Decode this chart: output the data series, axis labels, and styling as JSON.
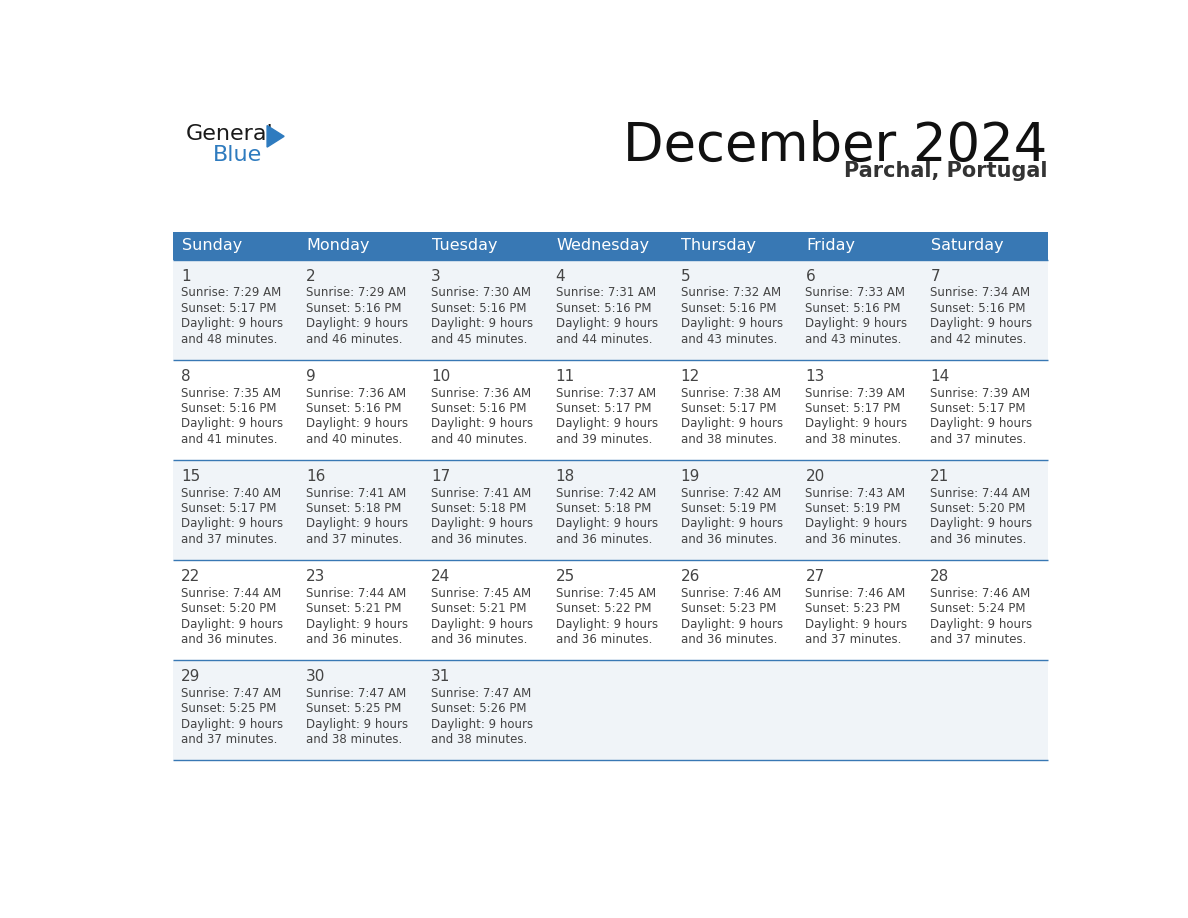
{
  "title": "December 2024",
  "subtitle": "Parchal, Portugal",
  "header_bg_color": "#3878b4",
  "header_text_color": "#ffffff",
  "cell_bg_row0": "#f0f4f8",
  "cell_bg_row1": "#ffffff",
  "cell_bg_row2": "#f0f4f8",
  "cell_bg_row3": "#ffffff",
  "cell_bg_row4": "#f0f4f8",
  "row_line_color": "#3878b4",
  "text_color": "#444444",
  "days_of_week": [
    "Sunday",
    "Monday",
    "Tuesday",
    "Wednesday",
    "Thursday",
    "Friday",
    "Saturday"
  ],
  "calendar_data": [
    [
      {
        "day": 1,
        "sunrise": "7:29 AM",
        "sunset": "5:17 PM",
        "daylight": "9 hours and 48 minutes."
      },
      {
        "day": 2,
        "sunrise": "7:29 AM",
        "sunset": "5:16 PM",
        "daylight": "9 hours and 46 minutes."
      },
      {
        "day": 3,
        "sunrise": "7:30 AM",
        "sunset": "5:16 PM",
        "daylight": "9 hours and 45 minutes."
      },
      {
        "day": 4,
        "sunrise": "7:31 AM",
        "sunset": "5:16 PM",
        "daylight": "9 hours and 44 minutes."
      },
      {
        "day": 5,
        "sunrise": "7:32 AM",
        "sunset": "5:16 PM",
        "daylight": "9 hours and 43 minutes."
      },
      {
        "day": 6,
        "sunrise": "7:33 AM",
        "sunset": "5:16 PM",
        "daylight": "9 hours and 43 minutes."
      },
      {
        "day": 7,
        "sunrise": "7:34 AM",
        "sunset": "5:16 PM",
        "daylight": "9 hours and 42 minutes."
      }
    ],
    [
      {
        "day": 8,
        "sunrise": "7:35 AM",
        "sunset": "5:16 PM",
        "daylight": "9 hours and 41 minutes."
      },
      {
        "day": 9,
        "sunrise": "7:36 AM",
        "sunset": "5:16 PM",
        "daylight": "9 hours and 40 minutes."
      },
      {
        "day": 10,
        "sunrise": "7:36 AM",
        "sunset": "5:16 PM",
        "daylight": "9 hours and 40 minutes."
      },
      {
        "day": 11,
        "sunrise": "7:37 AM",
        "sunset": "5:17 PM",
        "daylight": "9 hours and 39 minutes."
      },
      {
        "day": 12,
        "sunrise": "7:38 AM",
        "sunset": "5:17 PM",
        "daylight": "9 hours and 38 minutes."
      },
      {
        "day": 13,
        "sunrise": "7:39 AM",
        "sunset": "5:17 PM",
        "daylight": "9 hours and 38 minutes."
      },
      {
        "day": 14,
        "sunrise": "7:39 AM",
        "sunset": "5:17 PM",
        "daylight": "9 hours and 37 minutes."
      }
    ],
    [
      {
        "day": 15,
        "sunrise": "7:40 AM",
        "sunset": "5:17 PM",
        "daylight": "9 hours and 37 minutes."
      },
      {
        "day": 16,
        "sunrise": "7:41 AM",
        "sunset": "5:18 PM",
        "daylight": "9 hours and 37 minutes."
      },
      {
        "day": 17,
        "sunrise": "7:41 AM",
        "sunset": "5:18 PM",
        "daylight": "9 hours and 36 minutes."
      },
      {
        "day": 18,
        "sunrise": "7:42 AM",
        "sunset": "5:18 PM",
        "daylight": "9 hours and 36 minutes."
      },
      {
        "day": 19,
        "sunrise": "7:42 AM",
        "sunset": "5:19 PM",
        "daylight": "9 hours and 36 minutes."
      },
      {
        "day": 20,
        "sunrise": "7:43 AM",
        "sunset": "5:19 PM",
        "daylight": "9 hours and 36 minutes."
      },
      {
        "day": 21,
        "sunrise": "7:44 AM",
        "sunset": "5:20 PM",
        "daylight": "9 hours and 36 minutes."
      }
    ],
    [
      {
        "day": 22,
        "sunrise": "7:44 AM",
        "sunset": "5:20 PM",
        "daylight": "9 hours and 36 minutes."
      },
      {
        "day": 23,
        "sunrise": "7:44 AM",
        "sunset": "5:21 PM",
        "daylight": "9 hours and 36 minutes."
      },
      {
        "day": 24,
        "sunrise": "7:45 AM",
        "sunset": "5:21 PM",
        "daylight": "9 hours and 36 minutes."
      },
      {
        "day": 25,
        "sunrise": "7:45 AM",
        "sunset": "5:22 PM",
        "daylight": "9 hours and 36 minutes."
      },
      {
        "day": 26,
        "sunrise": "7:46 AM",
        "sunset": "5:23 PM",
        "daylight": "9 hours and 36 minutes."
      },
      {
        "day": 27,
        "sunrise": "7:46 AM",
        "sunset": "5:23 PM",
        "daylight": "9 hours and 37 minutes."
      },
      {
        "day": 28,
        "sunrise": "7:46 AM",
        "sunset": "5:24 PM",
        "daylight": "9 hours and 37 minutes."
      }
    ],
    [
      {
        "day": 29,
        "sunrise": "7:47 AM",
        "sunset": "5:25 PM",
        "daylight": "9 hours and 37 minutes."
      },
      {
        "day": 30,
        "sunrise": "7:47 AM",
        "sunset": "5:25 PM",
        "daylight": "9 hours and 38 minutes."
      },
      {
        "day": 31,
        "sunrise": "7:47 AM",
        "sunset": "5:26 PM",
        "daylight": "9 hours and 38 minutes."
      },
      null,
      null,
      null,
      null
    ]
  ],
  "logo_text1": "General",
  "logo_text2": "Blue",
  "logo_color1": "#1a1a1a",
  "logo_color2": "#2e7bbf",
  "logo_triangle_color": "#2e7bbf",
  "title_fontsize": 38,
  "subtitle_fontsize": 15,
  "header_fontsize": 11.5,
  "day_num_fontsize": 11,
  "cell_fontsize": 8.5
}
